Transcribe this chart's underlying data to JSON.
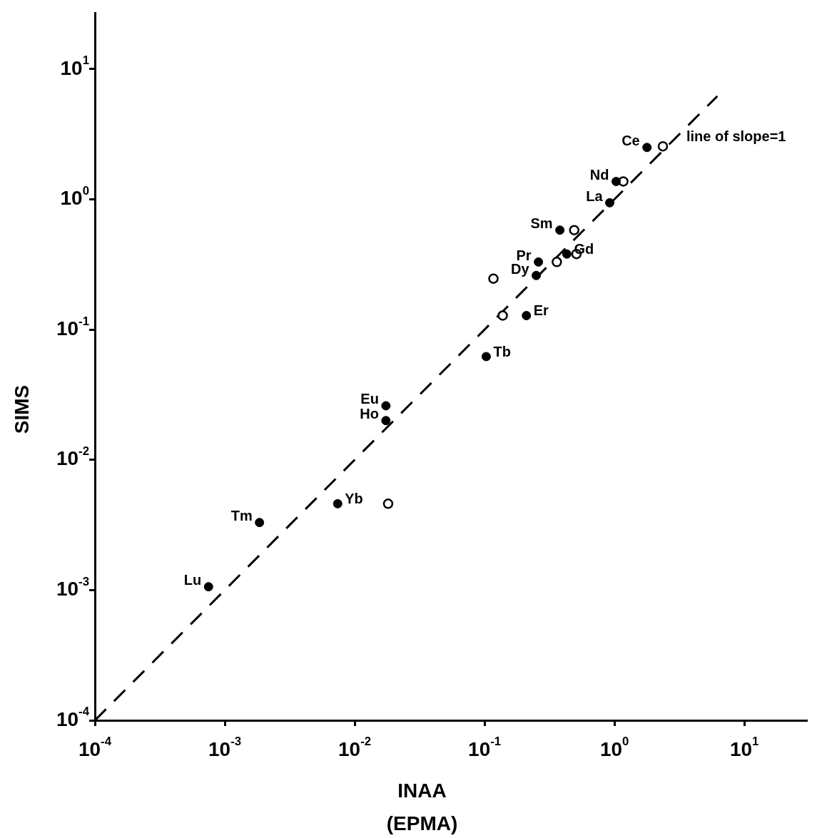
{
  "chart_data": {
    "type": "scatter",
    "xlabel": "INAA\n(EPMA)",
    "ylabel": "SIMS",
    "log": "xy",
    "grid": false,
    "legend": false,
    "marker": "circle",
    "xlim": [
      0.0001,
      30
    ],
    "ylim": [
      0.0001,
      27
    ],
    "xticks": [
      {
        "value": 0.0001,
        "label": "10$^{-4}$"
      },
      {
        "value": 0.001,
        "label": "10$^{-3}$"
      },
      {
        "value": 0.01,
        "label": "10$^{-2}$"
      },
      {
        "value": 0.1,
        "label": "10$^{-1}$"
      },
      {
        "value": 1,
        "label": "10$^{0}$"
      },
      {
        "value": 10,
        "label": "10$^{1}$"
      }
    ],
    "yticks": [
      {
        "value": 0.0001,
        "label": "10$^{-4}$"
      },
      {
        "value": 0.001,
        "label": "10$^{-3}$"
      },
      {
        "value": 0.01,
        "label": "10$^{-2}$"
      },
      {
        "value": 0.1,
        "label": "10$^{-1}$"
      },
      {
        "value": 1,
        "label": "10$^{0}$"
      },
      {
        "value": 10,
        "label": "10$^{1}$"
      }
    ],
    "series": [
      {
        "color": "#000000",
        "x": [
          1.78,
          1.03,
          0.92,
          0.38,
          0.43,
          0.26,
          0.25,
          0.21,
          0.103,
          0.0174,
          0.0174,
          0.0074,
          0.00185,
          0.00075
        ],
        "values": [
          2.5,
          1.37,
          0.94,
          0.58,
          0.38,
          0.33,
          0.26,
          0.128,
          0.062,
          0.026,
          0.02,
          0.0046,
          0.0033,
          0.00106
        ]
      },
      {
        "color": "#000000",
        "x": [
          2.36,
          1.17,
          0.49,
          0.51,
          0.36,
          0.117,
          0.138,
          0.0181
        ],
        "values": [
          2.55,
          1.37,
          0.58,
          0.38,
          0.33,
          0.246,
          0.128,
          0.0046
        ]
      },
      {
        "type": "line",
        "line_style": "dashed",
        "marker": "none",
        "color": "#000000",
        "x": [
          0.0001,
          6.2
        ],
        "values": [
          0.0001,
          6.2
        ]
      }
    ],
    "annotations": [
      {
        "text": "Ce",
        "x": 1.78,
        "y": 2.5
      },
      {
        "text": "Nd",
        "x": 1.03,
        "y": 1.37
      },
      {
        "text": "La",
        "x": 0.92,
        "y": 0.94
      },
      {
        "text": "Sm",
        "x": 0.38,
        "y": 0.58
      },
      {
        "text": "Gd",
        "x": 0.43,
        "y": 0.38
      },
      {
        "text": "Pr",
        "x": 0.26,
        "y": 0.33
      },
      {
        "text": "Dy",
        "x": 0.25,
        "y": 0.26
      },
      {
        "text": "Er",
        "x": 0.21,
        "y": 0.128
      },
      {
        "text": "Tb",
        "x": 0.103,
        "y": 0.062
      },
      {
        "text": "Eu",
        "x": 0.0174,
        "y": 0.026
      },
      {
        "text": "Ho",
        "x": 0.0174,
        "y": 0.02
      },
      {
        "text": "Yb",
        "x": 0.0074,
        "y": 0.0046
      },
      {
        "text": "Tm",
        "x": 0.00185,
        "y": 0.0033
      },
      {
        "text": "Lu",
        "x": 0.00075,
        "y": 0.00106
      },
      {
        "text": "line of slope=1",
        "x": 2.78,
        "y": 2.78
      }
    ]
  }
}
